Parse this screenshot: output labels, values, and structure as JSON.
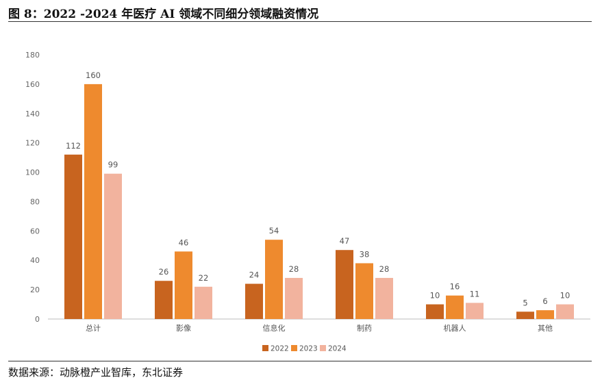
{
  "figure": {
    "title": "图 8：2022 -2024 年医疗 AI 领域不同细分领域融资情况",
    "source": "数据来源：动脉橙产业智库，东北证券"
  },
  "chart_data": {
    "type": "bar",
    "categories": [
      "总计",
      "影像",
      "信息化",
      "制药",
      "机器人",
      "其他"
    ],
    "series": [
      {
        "name": "2022",
        "values": [
          112,
          26,
          24,
          47,
          10,
          5
        ],
        "color": "#c8641f"
      },
      {
        "name": "2023",
        "values": [
          160,
          46,
          54,
          38,
          16,
          6
        ],
        "color": "#ee8a2e"
      },
      {
        "name": "2024",
        "values": [
          99,
          22,
          28,
          28,
          11,
          10
        ],
        "color": "#f2b39e"
      }
    ],
    "ylim": [
      0,
      180
    ],
    "yticks": [
      0,
      20,
      40,
      60,
      80,
      100,
      120,
      140,
      160,
      180
    ],
    "grid": false,
    "legend": "bottom-center",
    "data_labels": true
  }
}
